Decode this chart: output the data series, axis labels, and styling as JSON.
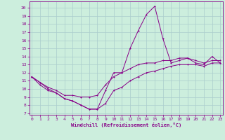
{
  "xlabel": "Windchill (Refroidissement éolien,°C)",
  "background_color": "#cceedd",
  "grid_color": "#aacccc",
  "line_color": "#880088",
  "x_ticks": [
    0,
    1,
    2,
    3,
    4,
    5,
    6,
    7,
    8,
    9,
    10,
    11,
    12,
    13,
    14,
    15,
    16,
    17,
    18,
    19,
    20,
    21,
    22,
    23
  ],
  "y_ticks": [
    7,
    8,
    9,
    10,
    11,
    12,
    13,
    14,
    15,
    16,
    17,
    18,
    19,
    20
  ],
  "ylim": [
    6.8,
    20.8
  ],
  "xlim": [
    -0.3,
    23.3
  ],
  "line1_y": [
    11.5,
    10.8,
    10.0,
    9.5,
    8.8,
    8.5,
    8.0,
    7.5,
    7.5,
    9.8,
    12.0,
    12.0,
    15.0,
    17.2,
    19.2,
    20.2,
    16.2,
    13.2,
    13.5,
    13.8,
    13.2,
    13.0,
    14.0,
    13.2
  ],
  "line2_y": [
    11.5,
    10.8,
    10.2,
    9.8,
    9.2,
    9.2,
    9.0,
    9.0,
    9.2,
    10.5,
    11.5,
    12.0,
    12.5,
    13.0,
    13.2,
    13.2,
    13.5,
    13.5,
    13.8,
    13.8,
    13.5,
    13.2,
    13.5,
    13.5
  ],
  "line3_y": [
    11.5,
    10.5,
    9.8,
    9.5,
    8.8,
    8.5,
    8.0,
    7.5,
    7.5,
    8.2,
    9.8,
    10.2,
    11.0,
    11.5,
    12.0,
    12.2,
    12.5,
    12.8,
    13.0,
    13.0,
    13.0,
    12.8,
    13.2,
    13.2
  ]
}
